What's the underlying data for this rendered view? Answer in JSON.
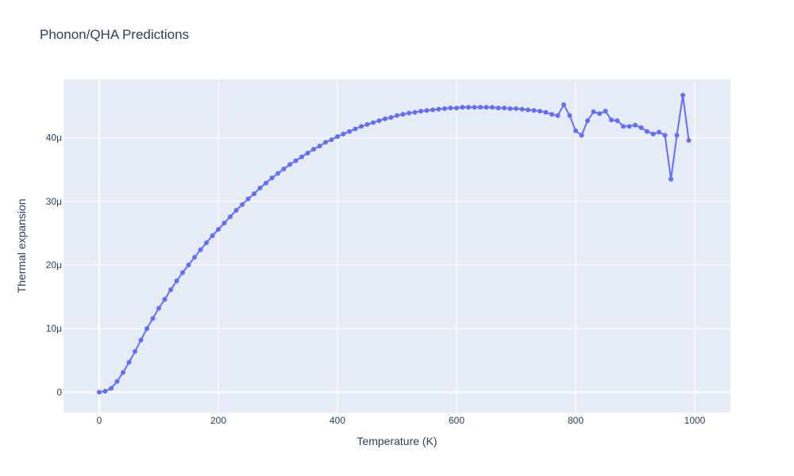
{
  "chart_data": {
    "type": "line",
    "title": "Phonon/QHA Predictions",
    "xlabel": "Temperature (K)",
    "ylabel": "Thermal expansion",
    "xlim": [
      -60,
      1060
    ],
    "ylim": [
      -3.2e-06,
      4.92e-05
    ],
    "xticks": [
      0,
      200,
      400,
      600,
      800,
      1000
    ],
    "xtick_labels": [
      "0",
      "200",
      "400",
      "600",
      "800",
      "1000"
    ],
    "yticks": [
      0,
      1e-05,
      2e-05,
      3e-05,
      4e-05
    ],
    "ytick_labels": [
      "0",
      "10μ",
      "20μ",
      "30μ",
      "40μ"
    ],
    "grid": true,
    "colors": {
      "series": "#636efa",
      "plot_bg": "#e5ecf6",
      "grid": "#ffffff",
      "text": "#2a3f5f"
    },
    "series": [
      {
        "mode": "lines+markers",
        "x": [
          0,
          10,
          20,
          30,
          40,
          50,
          60,
          70,
          80,
          90,
          100,
          110,
          120,
          130,
          140,
          150,
          160,
          170,
          180,
          190,
          200,
          210,
          220,
          230,
          240,
          250,
          260,
          270,
          280,
          290,
          300,
          310,
          320,
          330,
          340,
          350,
          360,
          370,
          380,
          390,
          400,
          410,
          420,
          430,
          440,
          450,
          460,
          470,
          480,
          490,
          500,
          510,
          520,
          530,
          540,
          550,
          560,
          570,
          580,
          590,
          600,
          610,
          620,
          630,
          640,
          650,
          660,
          670,
          680,
          690,
          700,
          710,
          720,
          730,
          740,
          750,
          760,
          770,
          780,
          790,
          800,
          810,
          820,
          830,
          840,
          850,
          860,
          870,
          880,
          890,
          900,
          910,
          920,
          930,
          940,
          950,
          960,
          970,
          980,
          990
        ],
        "y": [
          0,
          1.5e-07,
          6e-07,
          1.7e-06,
          3.1e-06,
          4.7e-06,
          6.4e-06,
          8.2e-06,
          1e-05,
          1.16e-05,
          1.32e-05,
          1.46e-05,
          1.61e-05,
          1.75e-05,
          1.88e-05,
          2e-05,
          2.12e-05,
          2.24e-05,
          2.35e-05,
          2.46e-05,
          2.56e-05,
          2.66e-05,
          2.76e-05,
          2.86e-05,
          2.95e-05,
          3.04e-05,
          3.12e-05,
          3.21e-05,
          3.29e-05,
          3.37e-05,
          3.44e-05,
          3.51e-05,
          3.58e-05,
          3.64e-05,
          3.7e-05,
          3.76e-05,
          3.82e-05,
          3.87e-05,
          3.93e-05,
          3.97e-05,
          4.02e-05,
          4.06e-05,
          4.1e-05,
          4.14e-05,
          4.18e-05,
          4.21e-05,
          4.24e-05,
          4.27e-05,
          4.3e-05,
          4.32e-05,
          4.35e-05,
          4.37e-05,
          4.39e-05,
          4.4e-05,
          4.42e-05,
          4.43e-05,
          4.44e-05,
          4.45e-05,
          4.46e-05,
          4.47e-05,
          4.47e-05,
          4.48e-05,
          4.48e-05,
          4.48e-05,
          4.48e-05,
          4.48e-05,
          4.48e-05,
          4.47e-05,
          4.47e-05,
          4.46e-05,
          4.46e-05,
          4.45e-05,
          4.44e-05,
          4.43e-05,
          4.42e-05,
          4.4e-05,
          4.37e-05,
          4.35e-05,
          4.52e-05,
          4.35e-05,
          4.11e-05,
          4.04e-05,
          4.27e-05,
          4.41e-05,
          4.38e-05,
          4.42e-05,
          4.28e-05,
          4.27e-05,
          4.18e-05,
          4.18e-05,
          4.2e-05,
          4.16e-05,
          4.1e-05,
          4.06e-05,
          4.09e-05,
          4.04e-05,
          3.35e-05,
          4.04e-05,
          4.67e-05,
          3.96e-05
        ]
      }
    ]
  }
}
